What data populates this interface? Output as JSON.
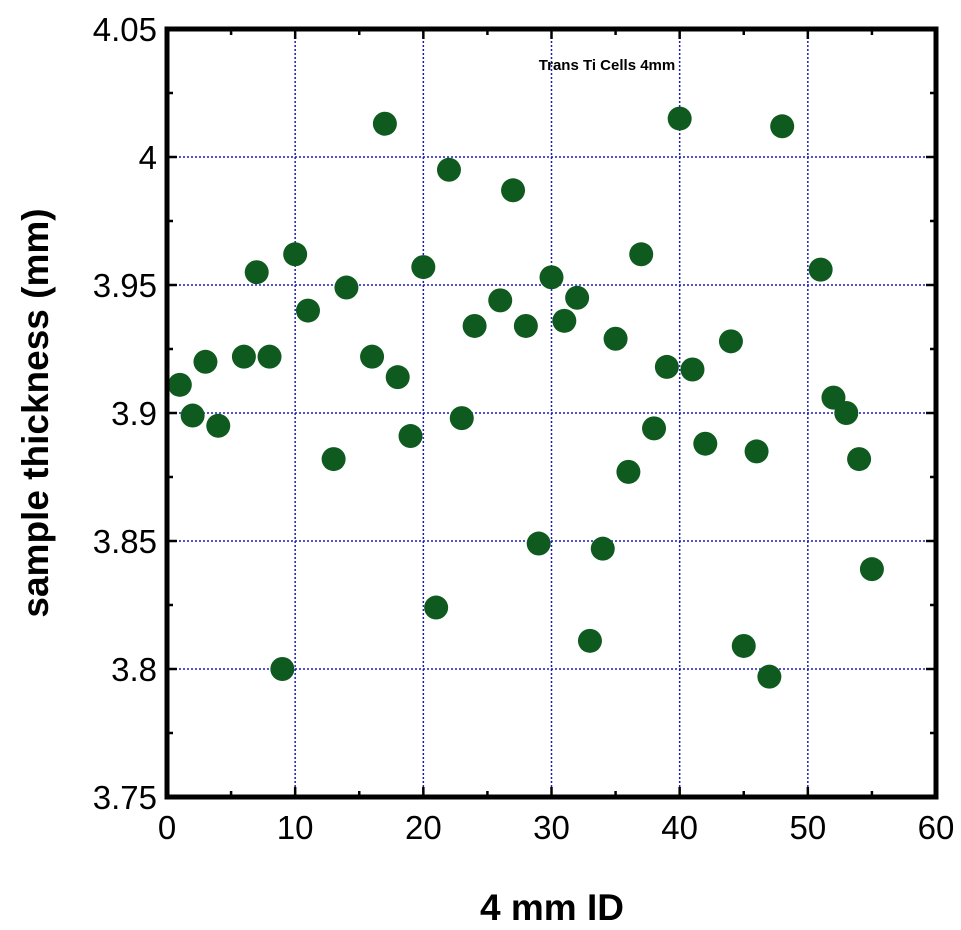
{
  "chart_data": {
    "type": "scatter",
    "title": "Trans  Ti Cells 4mm",
    "xlabel": "4 mm ID",
    "ylabel": "sample thickness (mm)",
    "xlim": [
      0,
      60
    ],
    "ylim": [
      3.75,
      4.05
    ],
    "x_ticks": [
      "0",
      "10",
      "20",
      "30",
      "40",
      "50",
      "60"
    ],
    "y_ticks": [
      "3.75",
      "3.8",
      "3.85",
      "3.9",
      "3.95",
      "4",
      "4.05"
    ],
    "grid": true,
    "marker_color": "#0f5a1e",
    "grid_color": "#1c1cb4",
    "points": [
      {
        "x": 1,
        "y": 3.911
      },
      {
        "x": 2,
        "y": 3.899
      },
      {
        "x": 3,
        "y": 3.92
      },
      {
        "x": 4,
        "y": 3.895
      },
      {
        "x": 6,
        "y": 3.922
      },
      {
        "x": 7,
        "y": 3.955
      },
      {
        "x": 8,
        "y": 3.922
      },
      {
        "x": 9,
        "y": 3.8
      },
      {
        "x": 10,
        "y": 3.962
      },
      {
        "x": 11,
        "y": 3.94
      },
      {
        "x": 13,
        "y": 3.882
      },
      {
        "x": 14,
        "y": 3.949
      },
      {
        "x": 16,
        "y": 3.922
      },
      {
        "x": 17,
        "y": 4.013
      },
      {
        "x": 18,
        "y": 3.914
      },
      {
        "x": 19,
        "y": 3.891
      },
      {
        "x": 20,
        "y": 3.957
      },
      {
        "x": 21,
        "y": 3.824
      },
      {
        "x": 22,
        "y": 3.995
      },
      {
        "x": 23,
        "y": 3.898
      },
      {
        "x": 24,
        "y": 3.934
      },
      {
        "x": 26,
        "y": 3.944
      },
      {
        "x": 27,
        "y": 3.987
      },
      {
        "x": 28,
        "y": 3.934
      },
      {
        "x": 29,
        "y": 3.849
      },
      {
        "x": 30,
        "y": 3.953
      },
      {
        "x": 31,
        "y": 3.936
      },
      {
        "x": 32,
        "y": 3.945
      },
      {
        "x": 33,
        "y": 3.811
      },
      {
        "x": 34,
        "y": 3.847
      },
      {
        "x": 35,
        "y": 3.929
      },
      {
        "x": 36,
        "y": 3.877
      },
      {
        "x": 37,
        "y": 3.962
      },
      {
        "x": 38,
        "y": 3.894
      },
      {
        "x": 39,
        "y": 3.918
      },
      {
        "x": 40,
        "y": 4.015
      },
      {
        "x": 41,
        "y": 3.917
      },
      {
        "x": 42,
        "y": 3.888
      },
      {
        "x": 44,
        "y": 3.928
      },
      {
        "x": 45,
        "y": 3.809
      },
      {
        "x": 46,
        "y": 3.885
      },
      {
        "x": 47,
        "y": 3.797
      },
      {
        "x": 48,
        "y": 4.012
      },
      {
        "x": 51,
        "y": 3.956
      },
      {
        "x": 52,
        "y": 3.906
      },
      {
        "x": 53,
        "y": 3.9
      },
      {
        "x": 54,
        "y": 3.882
      },
      {
        "x": 55,
        "y": 3.839
      }
    ]
  }
}
